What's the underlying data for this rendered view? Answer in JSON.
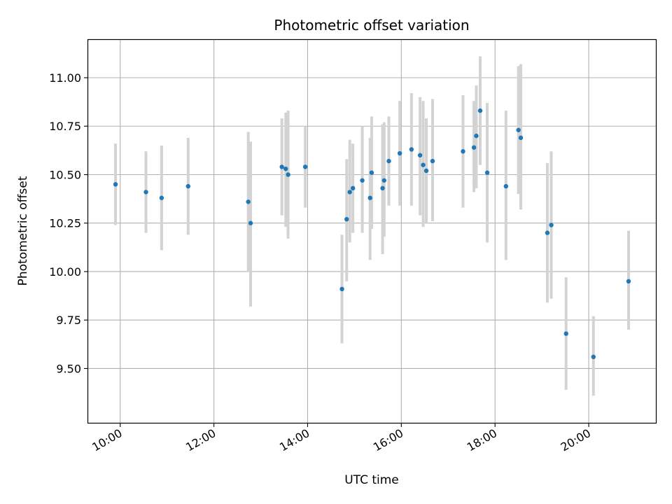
{
  "chart_data": {
    "type": "scatter",
    "title": "Photometric offset variation",
    "xlabel": "UTC time",
    "ylabel": "Photometric offset",
    "xlim": [
      "09:19",
      "21:26"
    ],
    "ylim": [
      9.22,
      11.195
    ],
    "x_ticks": [
      "10:00",
      "12:00",
      "14:00",
      "16:00",
      "18:00",
      "20:00"
    ],
    "y_ticks": [
      "9.50",
      "9.75",
      "10.00",
      "10.25",
      "10.50",
      "10.75",
      "11.00"
    ],
    "grid": true,
    "legend": "none",
    "colors": {
      "point": "#1f77b4",
      "errorbar": "#d3d3d3",
      "grid": "#b0b0b0"
    },
    "points": [
      {
        "t": "09:54",
        "y": 10.45,
        "lo": 10.24,
        "hi": 10.66
      },
      {
        "t": "10:33",
        "y": 10.41,
        "lo": 10.2,
        "hi": 10.62
      },
      {
        "t": "10:53",
        "y": 10.38,
        "lo": 10.11,
        "hi": 10.65
      },
      {
        "t": "11:27",
        "y": 10.44,
        "lo": 10.19,
        "hi": 10.69
      },
      {
        "t": "12:44",
        "y": 10.36,
        "lo": 10.0,
        "hi": 10.72
      },
      {
        "t": "12:47",
        "y": 10.25,
        "lo": 9.82,
        "hi": 10.67
      },
      {
        "t": "13:27",
        "y": 10.54,
        "lo": 10.29,
        "hi": 10.79
      },
      {
        "t": "13:32",
        "y": 10.53,
        "lo": 10.23,
        "hi": 10.82
      },
      {
        "t": "13:35",
        "y": 10.5,
        "lo": 10.17,
        "hi": 10.83
      },
      {
        "t": "13:57",
        "y": 10.54,
        "lo": 10.33,
        "hi": 10.75
      },
      {
        "t": "14:44",
        "y": 9.91,
        "lo": 9.63,
        "hi": 10.19
      },
      {
        "t": "14:50",
        "y": 10.27,
        "lo": 9.95,
        "hi": 10.58
      },
      {
        "t": "14:54",
        "y": 10.41,
        "lo": 10.15,
        "hi": 10.68
      },
      {
        "t": "14:58",
        "y": 10.43,
        "lo": 10.2,
        "hi": 10.66
      },
      {
        "t": "15:10",
        "y": 10.47,
        "lo": 10.2,
        "hi": 10.75
      },
      {
        "t": "15:20",
        "y": 10.38,
        "lo": 10.06,
        "hi": 10.69
      },
      {
        "t": "15:22",
        "y": 10.51,
        "lo": 10.22,
        "hi": 10.8
      },
      {
        "t": "15:36",
        "y": 10.43,
        "lo": 10.09,
        "hi": 10.76
      },
      {
        "t": "15:38",
        "y": 10.47,
        "lo": 10.18,
        "hi": 10.77
      },
      {
        "t": "15:44",
        "y": 10.57,
        "lo": 10.34,
        "hi": 10.8
      },
      {
        "t": "15:58",
        "y": 10.61,
        "lo": 10.34,
        "hi": 10.88
      },
      {
        "t": "16:13",
        "y": 10.63,
        "lo": 10.34,
        "hi": 10.92
      },
      {
        "t": "16:24",
        "y": 10.6,
        "lo": 10.29,
        "hi": 10.9
      },
      {
        "t": "16:28",
        "y": 10.55,
        "lo": 10.23,
        "hi": 10.88
      },
      {
        "t": "16:32",
        "y": 10.52,
        "lo": 10.25,
        "hi": 10.79
      },
      {
        "t": "16:40",
        "y": 10.57,
        "lo": 10.26,
        "hi": 10.89
      },
      {
        "t": "17:19",
        "y": 10.62,
        "lo": 10.33,
        "hi": 10.91
      },
      {
        "t": "17:33",
        "y": 10.64,
        "lo": 10.41,
        "hi": 10.88
      },
      {
        "t": "17:36",
        "y": 10.7,
        "lo": 10.43,
        "hi": 10.96
      },
      {
        "t": "17:41",
        "y": 10.83,
        "lo": 10.55,
        "hi": 11.11
      },
      {
        "t": "17:50",
        "y": 10.51,
        "lo": 10.15,
        "hi": 10.87
      },
      {
        "t": "18:14",
        "y": 10.44,
        "lo": 10.06,
        "hi": 10.83
      },
      {
        "t": "18:30",
        "y": 10.73,
        "lo": 10.4,
        "hi": 11.06
      },
      {
        "t": "18:33",
        "y": 10.69,
        "lo": 10.32,
        "hi": 11.07
      },
      {
        "t": "19:07",
        "y": 10.2,
        "lo": 9.84,
        "hi": 10.56
      },
      {
        "t": "19:12",
        "y": 10.24,
        "lo": 9.86,
        "hi": 10.62
      },
      {
        "t": "19:31",
        "y": 9.68,
        "lo": 9.39,
        "hi": 9.97
      },
      {
        "t": "20:06",
        "y": 9.56,
        "lo": 9.36,
        "hi": 9.77
      },
      {
        "t": "20:51",
        "y": 9.95,
        "lo": 9.7,
        "hi": 10.21
      }
    ]
  }
}
